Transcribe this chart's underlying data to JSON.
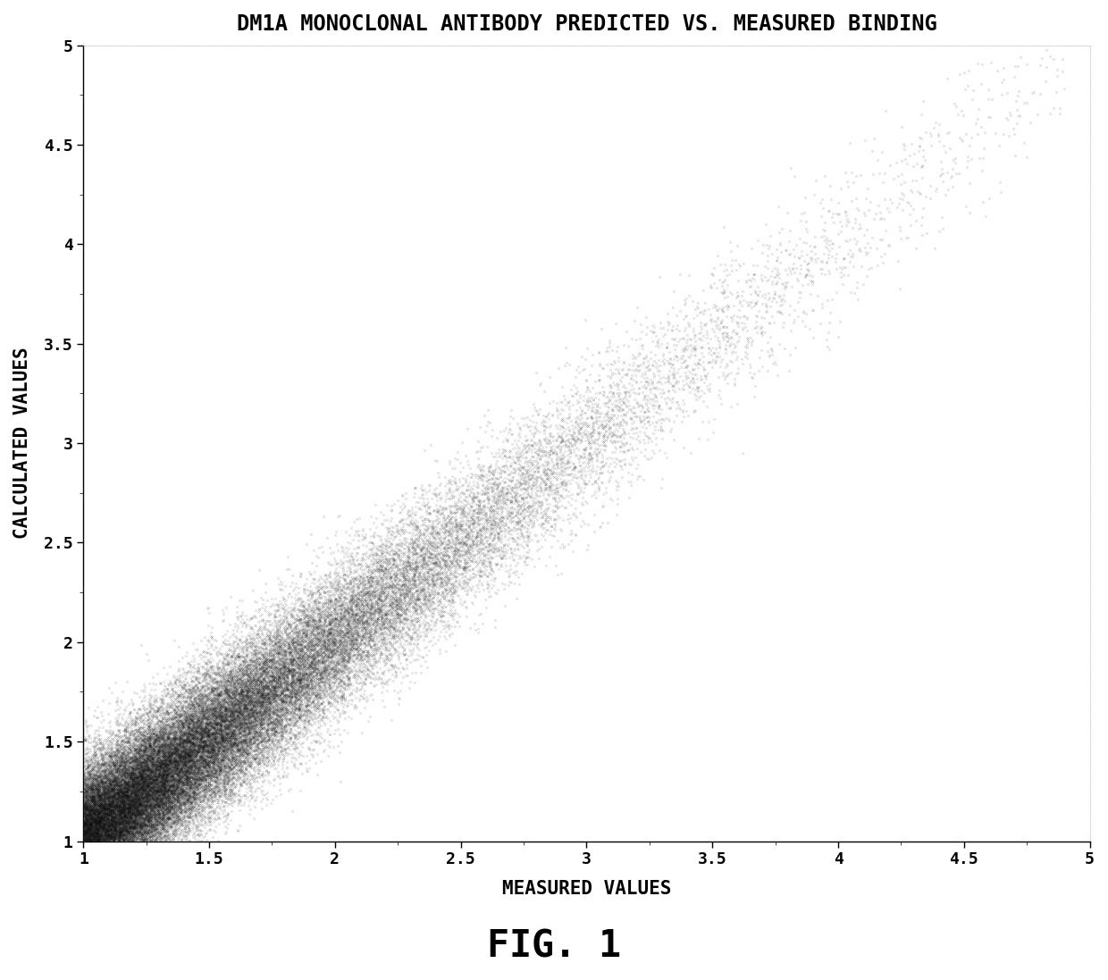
{
  "title": "DM1A MONOCLONAL ANTIBODY PREDICTED VS. MEASURED BINDING",
  "xlabel": "MEASURED VALUES",
  "ylabel": "CALCULATED VALUES",
  "caption": "FIG. 1",
  "xlim": [
    1,
    5
  ],
  "ylim": [
    1,
    5
  ],
  "xticks": [
    1,
    1.5,
    2,
    2.5,
    3,
    3.5,
    4,
    4.5,
    5
  ],
  "yticks": [
    1,
    1.5,
    2,
    2.5,
    3,
    3.5,
    4,
    4.5,
    5
  ],
  "n_points": 60000,
  "scatter_color": "#111111",
  "scatter_alpha": 0.18,
  "scatter_size": 3,
  "seed": 42,
  "noise_std": 0.18,
  "background_color": "#ffffff",
  "title_fontsize": 17,
  "label_fontsize": 15,
  "caption_fontsize": 30,
  "tick_fontsize": 13
}
